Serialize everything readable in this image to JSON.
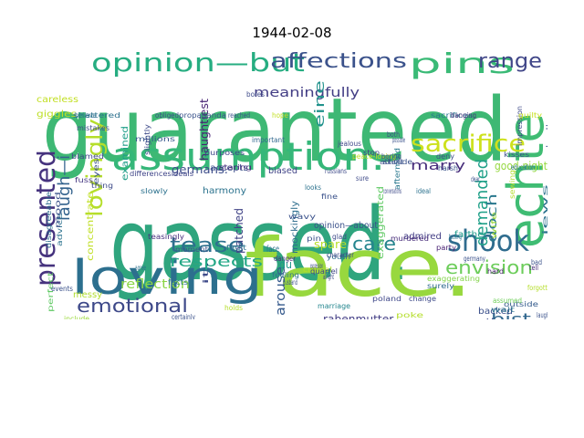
{
  "title": "1944-02-08",
  "words": [
    {
      "text": "guaranteed",
      "color": "#3eb874"
    },
    {
      "text": "gassed.",
      "color": "#2fa57e"
    },
    {
      "text": "face.",
      "color": "#98d83e"
    },
    {
      "text": "assumption.",
      "color": "#35b779"
    },
    {
      "text": "loving",
      "color": "#2c6f8e"
    },
    {
      "text": "echte",
      "color": "#3fbc73"
    },
    {
      "text": "opinion—but",
      "color": "#26ad81"
    },
    {
      "text": "presented",
      "color": "#46337e"
    },
    {
      "text": "pins",
      "color": "#3aba76"
    },
    {
      "text": "shook",
      "color": "#2f6c8e"
    },
    {
      "text": "sacrifice",
      "color": "#cde11d"
    },
    {
      "text": "affections",
      "color": "#3b528b"
    },
    {
      "text": "range",
      "color": "#404688"
    },
    {
      "text": "lovingly",
      "color": "#b5de2b"
    },
    {
      "text": "laugh—i",
      "color": "#33628d"
    },
    {
      "text": "tease",
      "color": "#2d708e"
    },
    {
      "text": "care",
      "color": "#25858e"
    },
    {
      "text": "emotional",
      "color": "#3e4989"
    },
    {
      "text": "envision",
      "color": "#6ccd5a"
    },
    {
      "text": "demanded",
      "color": "#1fa088"
    },
    {
      "text": "respects",
      "color": "#22a785"
    },
    {
      "text": "marry",
      "color": "#472d7b"
    },
    {
      "text": "bist",
      "color": "#31678e"
    },
    {
      "text": "reflection",
      "color": "#8bd646"
    },
    {
      "text": "germans.",
      "color": "#3d4d8a"
    },
    {
      "text": "meaningfully",
      "color": "#433e85"
    },
    {
      "text": "eine",
      "color": "#20928c"
    },
    {
      "text": "doch",
      "color": "#2a788e"
    },
    {
      "text": "spare",
      "color": "#b8de29"
    },
    {
      "text": "arouse",
      "color": "#375b8d"
    },
    {
      "text": "patched",
      "color": "#414487"
    },
    {
      "text": "giggling",
      "color": "#3b528b"
    },
    {
      "text": "good-night",
      "color": "#95d840"
    },
    {
      "text": "mockingly",
      "color": "#2e6e8e"
    },
    {
      "text": "haughtiest",
      "color": "#482374"
    },
    {
      "text": "accepts",
      "color": "#3c4f8a"
    },
    {
      "text": "harmony",
      "color": "#2c738e"
    },
    {
      "text": "giggles",
      "color": "#bddf26"
    },
    {
      "text": "careless",
      "color": "#c2df23"
    },
    {
      "text": "shattered",
      "color": "#2d718e"
    },
    {
      "text": "millions",
      "color": "#38588c"
    },
    {
      "text": "examined",
      "color": "#1f9e89"
    },
    {
      "text": "blamed",
      "color": "#3f4788"
    },
    {
      "text": "differencesideals",
      "color": "#404588"
    },
    {
      "text": "concentrate",
      "color": "#c0df25"
    },
    {
      "text": "exaggerated",
      "color": "#5ec962"
    },
    {
      "text": "aftermaid",
      "color": "#2a788e"
    },
    {
      "text": "admired",
      "color": "#433e85"
    },
    {
      "text": "opinion—about",
      "color": "#3b528b"
    },
    {
      "text": "farther",
      "color": "#1f9a8a"
    },
    {
      "text": "curtly",
      "color": "#3e4c8a"
    },
    {
      "text": "backed",
      "color": "#3c508b"
    },
    {
      "text": "rabenmutter.",
      "color": "#433e85"
    },
    {
      "text": "overlooked",
      "color": "#7ad151"
    },
    {
      "text": "crumbling",
      "color": "#9dd93b"
    },
    {
      "text": "annoyed",
      "color": "#3b528b"
    },
    {
      "text": "manicure",
      "color": "#3d4d8a"
    },
    {
      "text": "blanket",
      "color": "#2c728e"
    },
    {
      "text": "married",
      "color": "#3f4788"
    },
    {
      "text": "messy",
      "color": "#b0dd2f"
    },
    {
      "text": "perfect",
      "color": "#5ec962"
    },
    {
      "text": "include",
      "color": "#9bd93c"
    },
    {
      "text": "disagreeable",
      "color": "#2e6d8e"
    },
    {
      "text": "staring",
      "color": "#472c7a"
    },
    {
      "text": "purposes",
      "color": "#3f4889"
    },
    {
      "text": "slowly",
      "color": "#2c728e"
    },
    {
      "text": "teasingly",
      "color": "#472f7d"
    },
    {
      "text": "fuss",
      "color": "#453781"
    },
    {
      "text": "propaganda",
      "color": "#3a538b"
    },
    {
      "text": "mistakes",
      "color": "#3e4a89"
    },
    {
      "text": "sacrifices",
      "color": "#2a778e"
    },
    {
      "text": "du",
      "color": "#1f968b"
    },
    {
      "text": "biased",
      "color": "#414487"
    },
    {
      "text": "sewing",
      "color": "#b2dd2d"
    },
    {
      "text": "harsh",
      "color": "#3b528b"
    },
    {
      "text": "stop",
      "color": "#424186"
    },
    {
      "text": "deny",
      "color": "#3d4e8a"
    },
    {
      "text": "kisses",
      "color": "#3b528b"
    },
    {
      "text": "party",
      "color": "#482173"
    },
    {
      "text": "surely",
      "color": "#2f6b8e"
    },
    {
      "text": "murdered",
      "color": "#472c7a"
    },
    {
      "text": "poland",
      "color": "#3f4889"
    },
    {
      "text": "complained",
      "color": "#2e6e8e"
    },
    {
      "text": "exaggerating",
      "color": "#84d44b"
    },
    {
      "text": "outside",
      "color": "#365c8d"
    },
    {
      "text": "marriage",
      "color": "#24868e"
    },
    {
      "text": "youth",
      "color": "#2e6d8e"
    },
    {
      "text": "critical",
      "color": "#b8de29"
    },
    {
      "text": "attitude",
      "color": "#3b528b"
    },
    {
      "text": "suitable",
      "color": "#b5de2b"
    },
    {
      "text": "hope",
      "color": "#c2df23"
    },
    {
      "text": "important",
      "color": "#31688e"
    },
    {
      "text": "impression",
      "color": "#3e4a89"
    },
    {
      "text": "guilty",
      "color": "#c8e020"
    },
    {
      "text": "facts",
      "color": "#2c738e"
    },
    {
      "text": "hard",
      "color": "#481b6d"
    },
    {
      "text": "quarrel",
      "color": "#3f4788"
    },
    {
      "text": "laughing",
      "color": "#3b528b"
    },
    {
      "text": "studying",
      "color": "#2c728e"
    },
    {
      "text": "assumed",
      "color": "#6ece58"
    },
    {
      "text": "jealous",
      "color": "#3f4788"
    },
    {
      "text": "danger",
      "color": "#472c7a"
    },
    {
      "text": "peace-loving",
      "color": "#c2df23"
    },
    {
      "text": "boring",
      "color": "#3e4a89"
    },
    {
      "text": "ideal",
      "color": "#2c728e"
    },
    {
      "text": "banging",
      "color": "#46327e"
    },
    {
      "text": "silent",
      "color": "#3b528b"
    },
    {
      "text": "bores",
      "color": "#3e4a89"
    },
    {
      "text": "excellent",
      "color": "#c2df23"
    },
    {
      "text": "laugh",
      "color": "#3b528b"
    },
    {
      "text": "forgotten",
      "color": "#b5de2b"
    },
    {
      "text": "tell",
      "color": "#472c7a"
    },
    {
      "text": "face",
      "color": "#2c728e"
    },
    {
      "text": "pin",
      "color": "#3b528b"
    },
    {
      "text": "it.",
      "color": "#3e4a89"
    },
    {
      "text": "tucking",
      "color": "#2c728e"
    },
    {
      "text": "wife",
      "color": "#9dd93b"
    },
    {
      "text": "germany",
      "color": "#3b528b"
    },
    {
      "text": "obliged",
      "color": "#3e4a89"
    },
    {
      "text": "reached",
      "color": "#3b528b"
    },
    {
      "text": "believe",
      "color": "#2c728e"
    },
    {
      "text": "slightly",
      "color": "#3e4a89"
    },
    {
      "text": "possible",
      "color": "#3b528b"
    },
    {
      "text": "both",
      "color": "#3e4a89"
    },
    {
      "text": "wait",
      "color": "#2c728e"
    },
    {
      "text": "events",
      "color": "#3b528b"
    },
    {
      "text": "change",
      "color": "#3e4a89"
    },
    {
      "text": "feeling",
      "color": "#2c728e"
    },
    {
      "text": "moment",
      "color": "#3b528b"
    },
    {
      "text": "expression",
      "color": "#3e4a89"
    },
    {
      "text": "poke",
      "color": "#b5de2b"
    },
    {
      "text": "wavy",
      "color": "#3b528b"
    },
    {
      "text": "russians",
      "color": "#3e4a89"
    },
    {
      "text": "advice",
      "color": "#2c728e"
    },
    {
      "text": "mood",
      "color": "#3b528b"
    },
    {
      "text": "character",
      "color": "#3e4a89"
    },
    {
      "text": "education",
      "color": "#2c728e"
    },
    {
      "text": "husband",
      "color": "#3b528b"
    },
    {
      "text": "alright",
      "color": "#3e4a89"
    },
    {
      "text": "jews",
      "color": "#2c728e"
    },
    {
      "text": "fine",
      "color": "#3b528b"
    },
    {
      "text": "conversations",
      "color": "#3e4a89"
    },
    {
      "text": "looks",
      "color": "#2c728e"
    },
    {
      "text": "dear",
      "color": "#3b528b"
    },
    {
      "text": "thing",
      "color": "#3e4a89"
    },
    {
      "text": "fault",
      "color": "#2c728e"
    },
    {
      "text": "eyes",
      "color": "#3b528b"
    },
    {
      "text": "glad",
      "color": "#3e4a89"
    },
    {
      "text": "holds",
      "color": "#b5de2b"
    },
    {
      "text": "certainly",
      "color": "#3b528b"
    },
    {
      "text": "sure",
      "color": "#3e4a89"
    },
    {
      "text": "agree",
      "color": "#2c728e"
    },
    {
      "text": "bad",
      "color": "#3b528b"
    },
    {
      "text": "ear",
      "color": "#3e4a89"
    }
  ]
}
